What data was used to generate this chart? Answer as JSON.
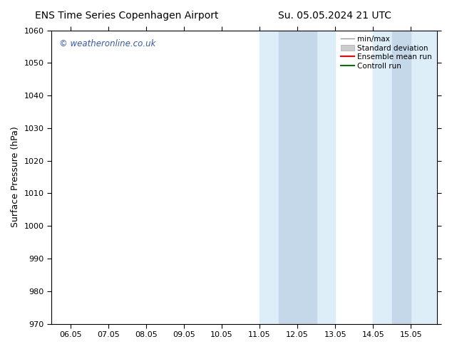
{
  "title_left": "ENS Time Series Copenhagen Airport",
  "title_right": "Su. 05.05.2024 21 UTC",
  "ylabel": "Surface Pressure (hPa)",
  "ylim": [
    970,
    1060
  ],
  "yticks": [
    970,
    980,
    990,
    1000,
    1010,
    1020,
    1030,
    1040,
    1050,
    1060
  ],
  "xtick_labels": [
    "06.05",
    "07.05",
    "08.05",
    "09.05",
    "10.05",
    "11.05",
    "12.05",
    "13.05",
    "14.05",
    "15.05"
  ],
  "xtick_positions": [
    0,
    1,
    2,
    3,
    4,
    5,
    6,
    7,
    8,
    9
  ],
  "x_min": -0.5,
  "x_max": 9.7,
  "bg_color": "#ffffff",
  "plot_bg_color": "#ffffff",
  "band_color": "#ddeef8",
  "inner_band_color": "#c5d8ea",
  "watermark_text": "© weatheronline.co.uk",
  "watermark_color": "#3355cc",
  "band1_start": 5.0,
  "band1_end": 7.0,
  "inner1_start": 5.5,
  "inner1_end": 6.5,
  "band2_start": 8.0,
  "band2_end": 9.7,
  "inner2_start": 8.5,
  "inner2_end": 9.0,
  "title_fontsize": 10,
  "axis_label_fontsize": 9,
  "tick_fontsize": 8,
  "watermark_fontsize": 8.5,
  "legend_fontsize": 7.5
}
